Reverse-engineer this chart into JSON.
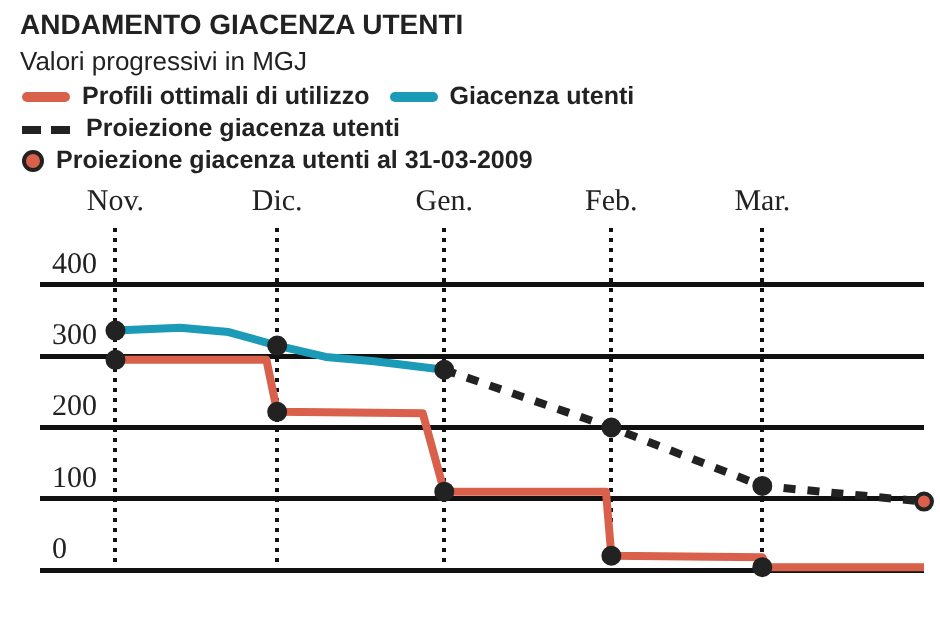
{
  "chart_data": {
    "type": "line",
    "title": "ANDAMENTO GIACENZA UTENTI",
    "subtitle": "Valori progressivi in MGJ",
    "legend": "top",
    "grid": true,
    "xlim": [
      "2008-10-18",
      "2009-03-31"
    ],
    "xticks": [
      {
        "value": "2008-11-01",
        "label": "Nov."
      },
      {
        "value": "2008-12-01",
        "label": "Dic."
      },
      {
        "value": "2009-01-01",
        "label": "Gen."
      },
      {
        "value": "2009-02-01",
        "label": "Feb."
      },
      {
        "value": "2009-03-01",
        "label": "Mar."
      }
    ],
    "ylim": [
      0,
      480
    ],
    "yticks": [
      0,
      100,
      200,
      300,
      400
    ],
    "series": [
      {
        "name": "Profili ottimali di utilizzo",
        "color": "#d9604a",
        "x": [
          "2008-11-01",
          "2008-11-29",
          "2008-12-01",
          "2008-12-28",
          "2009-01-01",
          "2009-01-31",
          "2009-02-01",
          "2009-03-01",
          "2009-03-02",
          "2009-03-31"
        ],
        "values": [
          295,
          295,
          222,
          220,
          110,
          110,
          20,
          18,
          4,
          4
        ]
      },
      {
        "name": "Giacenza utenti",
        "color": "#1b9bb8",
        "x": [
          "2008-11-01",
          "2008-11-13",
          "2008-11-22",
          "2008-12-01",
          "2008-12-10",
          "2008-12-19",
          "2009-01-01"
        ],
        "values": [
          336,
          340,
          334,
          315,
          299,
          293,
          281
        ]
      },
      {
        "name": "Proiezione giacenza utenti",
        "line_style": "dashed",
        "color": "#222222",
        "x": [
          "2009-01-01",
          "2009-02-01",
          "2009-03-01",
          "2009-03-31"
        ],
        "values": [
          281,
          200,
          118,
          96
        ]
      },
      {
        "name": "Proiezione giacenza utenti al 31-03-2009",
        "type": "scatter",
        "marker": "circle",
        "color": "#d9604a",
        "x": [
          "2008-11-01",
          "2008-11-01",
          "2008-12-01",
          "2008-12-01",
          "2009-01-01",
          "2009-01-01",
          "2009-02-01",
          "2009-02-01",
          "2009-03-01",
          "2009-03-01",
          "2009-03-31"
        ],
        "values": [
          336,
          295,
          315,
          222,
          281,
          110,
          200,
          20,
          118,
          4,
          96
        ],
        "colors": [
          "#222222",
          "#222222",
          "#222222",
          "#222222",
          "#222222",
          "#222222",
          "#222222",
          "#222222",
          "#222222",
          "#222222",
          "#d9604a"
        ]
      }
    ]
  }
}
